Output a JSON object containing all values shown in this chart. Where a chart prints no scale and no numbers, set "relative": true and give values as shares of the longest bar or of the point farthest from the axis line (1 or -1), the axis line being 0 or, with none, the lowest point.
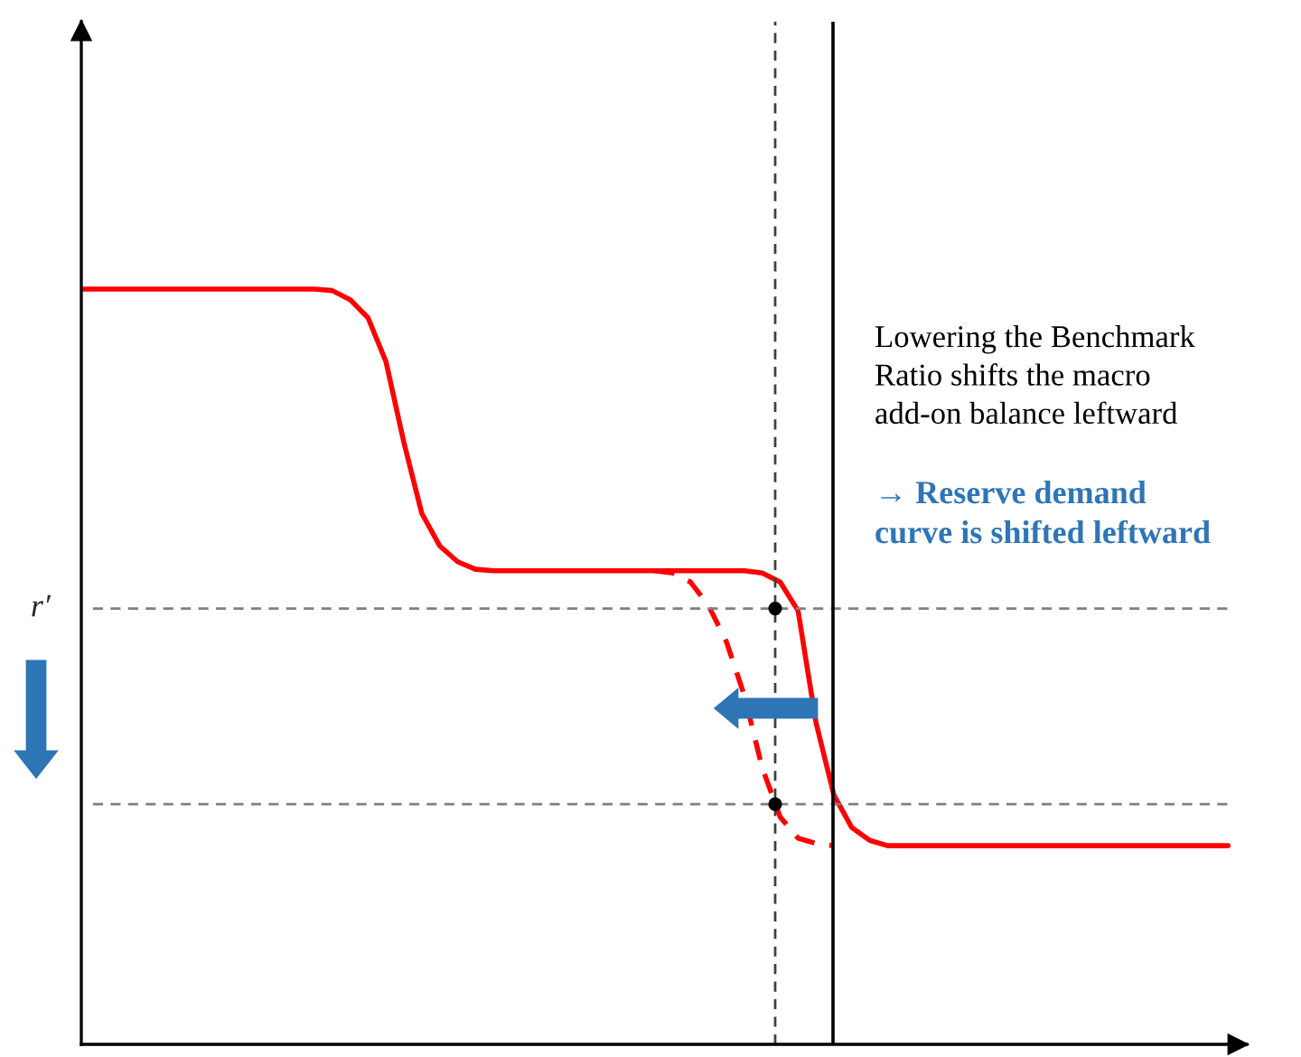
{
  "chart_data": {
    "type": "line",
    "relative": true,
    "tick_labels": false,
    "legend": false,
    "marker": "none",
    "categories": [
      null,
      null,
      null,
      null,
      null,
      null,
      null,
      null,
      null,
      null,
      null,
      null,
      null,
      null,
      null,
      null,
      null,
      null,
      null,
      null,
      null,
      null,
      null,
      null,
      null,
      null,
      null,
      null,
      null,
      null,
      null,
      null,
      null,
      null,
      null,
      null,
      null,
      null,
      null,
      null,
      null,
      null,
      null,
      null,
      null,
      null,
      null,
      null,
      null,
      null,
      null,
      null,
      null,
      null,
      null,
      null,
      null,
      null,
      null,
      null,
      null,
      null,
      null,
      null,
      null
    ],
    "series": [
      {
        "color": "#ff0000",
        "line_style": "solid",
        "values": [
          1.0,
          1.0,
          1.0,
          1.0,
          1.0,
          1.0,
          1.0,
          1.0,
          1.0,
          1.0,
          1.0,
          1.0,
          1.0,
          1.0,
          0.998,
          0.986,
          0.962,
          0.904,
          0.797,
          0.703,
          0.66,
          0.639,
          0.629,
          0.627,
          0.627,
          0.627,
          0.627,
          0.627,
          0.627,
          0.627,
          0.627,
          0.627,
          0.627,
          0.627,
          0.627,
          0.627,
          0.627,
          0.627,
          0.624,
          0.612,
          0.574,
          0.426,
          0.33,
          0.287,
          0.27,
          0.263,
          0.263,
          0.263,
          0.263,
          0.263,
          0.263,
          0.263,
          0.263,
          0.263,
          0.263,
          0.263,
          0.263,
          0.263,
          0.263,
          0.263,
          0.263,
          0.263,
          0.263,
          0.263,
          0.263
        ]
      },
      {
        "color": "#ff0000",
        "line_style": "dashed",
        "values": [
          null,
          null,
          null,
          null,
          null,
          null,
          null,
          null,
          null,
          null,
          null,
          null,
          null,
          null,
          null,
          null,
          null,
          null,
          null,
          null,
          null,
          null,
          null,
          null,
          null,
          null,
          null,
          null,
          null,
          null,
          null,
          null,
          0.627,
          0.624,
          0.612,
          0.581,
          0.533,
          0.462,
          0.366,
          0.301,
          0.273,
          0.266,
          0.263,
          null,
          null,
          null,
          null,
          null,
          null,
          null,
          null,
          null,
          null,
          null,
          null,
          null,
          null,
          null,
          null,
          null,
          null,
          null,
          null,
          null,
          null
        ]
      }
    ],
    "ref_lines": [
      {
        "axis": "y",
        "value": 0.577,
        "label": "r′",
        "color": "#808080",
        "line_style": "dashed"
      },
      {
        "axis": "y",
        "value": 0.318,
        "color": "#808080",
        "line_style": "dashed"
      }
    ],
    "annotations": [
      "Lowering the Benchmark\nRatio shifts the macro\nadd-on balance leftward",
      "→ Reserve demand\ncurve is shifted leftward"
    ]
  }
}
